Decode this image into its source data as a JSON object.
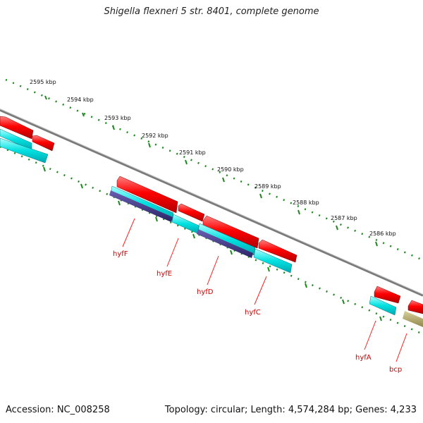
{
  "title": "Shigella flexneri 5 str. 8401, complete genome",
  "footer": {
    "accession": "Accession: NC_008258",
    "stats": "Topology: circular; Length: 4,574,284 bp; Genes: 4,233"
  },
  "ticks": [
    "2595 kbp",
    "2594 kbp",
    "2593 kbp",
    "2592 kbp",
    "2591 kbp",
    "2590 kbp",
    "2589 kbp",
    "2588 kbp",
    "2587 kbp",
    "2586 kbp"
  ],
  "genes": [
    "hyfF",
    "hyfE",
    "hyfD",
    "hyfC",
    "hyfA",
    "bcp"
  ],
  "colors": {
    "backbone": "#7a7a7a",
    "forward_cds": "#ee0000",
    "reverse_cds": "#00dddd",
    "feature_blue": "#4a3f8f",
    "feature_olive": "#b5ad6a",
    "tick": "#1a8a1a",
    "label": "#cc0000"
  }
}
